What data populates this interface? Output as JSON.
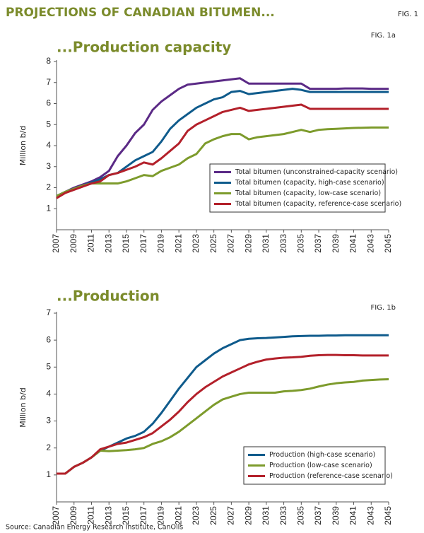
{
  "title": "PROJECTIONS OF CANADIAN BITUMEN...",
  "fig_label": "FIG. 1",
  "source": "Source: Canadian Energy Research Institute, CanOils",
  "chart_data": [
    {
      "type": "line",
      "title": "...Production capacity",
      "fig_label": "FIG. 1a",
      "ylabel": "Million b/d",
      "x": [
        2007,
        2008,
        2009,
        2010,
        2011,
        2012,
        2013,
        2014,
        2015,
        2016,
        2017,
        2018,
        2019,
        2020,
        2021,
        2022,
        2023,
        2024,
        2025,
        2026,
        2027,
        2028,
        2029,
        2030,
        2031,
        2032,
        2033,
        2034,
        2035,
        2036,
        2037,
        2038,
        2039,
        2040,
        2041,
        2042,
        2043,
        2044,
        2045
      ],
      "series": [
        {
          "name": "Total bitumen (unconstrained-capacity scenario)",
          "color": "#5b2a86",
          "values": [
            1.6,
            1.8,
            2.0,
            2.15,
            2.3,
            2.5,
            2.8,
            3.5,
            4.0,
            4.6,
            5.0,
            5.7,
            6.1,
            6.4,
            6.7,
            6.9,
            6.95,
            7.0,
            7.05,
            7.1,
            7.15,
            7.2,
            6.95,
            6.95,
            6.95,
            6.95,
            6.95,
            6.95,
            6.95,
            6.7,
            6.7,
            6.7,
            6.7,
            6.72,
            6.72,
            6.72,
            6.7,
            6.7,
            6.7
          ]
        },
        {
          "name": "Total bitumen (capacity, high-case scenario)",
          "color": "#0f5b8c",
          "values": [
            1.6,
            1.8,
            1.95,
            2.1,
            2.25,
            2.4,
            2.6,
            2.7,
            3.0,
            3.3,
            3.5,
            3.7,
            4.2,
            4.8,
            5.2,
            5.5,
            5.8,
            6.0,
            6.2,
            6.3,
            6.55,
            6.6,
            6.45,
            6.5,
            6.55,
            6.6,
            6.65,
            6.7,
            6.65,
            6.55,
            6.55,
            6.55,
            6.55,
            6.55,
            6.55,
            6.55,
            6.55,
            6.55,
            6.55
          ]
        },
        {
          "name": "Total bitumen (capacity, low-case scenario)",
          "color": "#7d9b2c",
          "values": [
            1.6,
            1.8,
            1.95,
            2.1,
            2.2,
            2.2,
            2.2,
            2.2,
            2.3,
            2.45,
            2.6,
            2.55,
            2.8,
            2.95,
            3.1,
            3.4,
            3.6,
            4.1,
            4.3,
            4.45,
            4.55,
            4.55,
            4.3,
            4.4,
            4.45,
            4.5,
            4.55,
            4.65,
            4.75,
            4.65,
            4.75,
            4.78,
            4.8,
            4.82,
            4.84,
            4.85,
            4.86,
            4.86,
            4.86
          ]
        },
        {
          "name": "Total bitumen (capacity, reference-case scenario)",
          "color": "#b3202a",
          "values": [
            1.5,
            1.75,
            1.9,
            2.05,
            2.2,
            2.3,
            2.6,
            2.7,
            2.85,
            3.0,
            3.2,
            3.1,
            3.4,
            3.75,
            4.1,
            4.7,
            5.0,
            5.2,
            5.4,
            5.6,
            5.7,
            5.8,
            5.65,
            5.7,
            5.75,
            5.8,
            5.85,
            5.9,
            5.95,
            5.75,
            5.75,
            5.75,
            5.75,
            5.75,
            5.75,
            5.75,
            5.75,
            5.75,
            5.75
          ]
        }
      ],
      "xlim": [
        2007,
        2045
      ],
      "xticks": [
        2007,
        2009,
        2011,
        2013,
        2015,
        2017,
        2019,
        2021,
        2023,
        2025,
        2027,
        2029,
        2031,
        2033,
        2035,
        2037,
        2039,
        2041,
        2043,
        2045
      ],
      "ylim": [
        0,
        8
      ],
      "yticks": [
        1,
        2,
        3,
        4,
        5,
        6,
        7,
        8
      ],
      "legend": "lower right"
    },
    {
      "type": "line",
      "title": "...Production",
      "fig_label": "FIG. 1b",
      "ylabel": "Million b/d",
      "x": [
        2007,
        2008,
        2009,
        2010,
        2011,
        2012,
        2013,
        2014,
        2015,
        2016,
        2017,
        2018,
        2019,
        2020,
        2021,
        2022,
        2023,
        2024,
        2025,
        2026,
        2027,
        2028,
        2029,
        2030,
        2031,
        2032,
        2033,
        2034,
        2035,
        2036,
        2037,
        2038,
        2039,
        2040,
        2041,
        2042,
        2043,
        2044,
        2045
      ],
      "series": [
        {
          "name": "Production (high-case scenario)",
          "color": "#0f5b8c",
          "values": [
            1.05,
            1.05,
            1.3,
            1.45,
            1.65,
            1.9,
            2.05,
            2.2,
            2.35,
            2.45,
            2.6,
            2.9,
            3.3,
            3.75,
            4.2,
            4.6,
            5.0,
            5.25,
            5.5,
            5.7,
            5.85,
            6.0,
            6.05,
            6.07,
            6.08,
            6.1,
            6.12,
            6.14,
            6.15,
            6.16,
            6.16,
            6.17,
            6.17,
            6.18,
            6.18,
            6.18,
            6.18,
            6.18,
            6.18
          ]
        },
        {
          "name": "Production (low-case scenario)",
          "color": "#7d9b2c",
          "values": [
            1.05,
            1.05,
            1.3,
            1.45,
            1.65,
            1.9,
            1.88,
            1.9,
            1.92,
            1.95,
            2.0,
            2.15,
            2.25,
            2.4,
            2.6,
            2.85,
            3.1,
            3.35,
            3.6,
            3.8,
            3.9,
            4.0,
            4.05,
            4.05,
            4.05,
            4.05,
            4.1,
            4.12,
            4.15,
            4.2,
            4.28,
            4.35,
            4.4,
            4.43,
            4.45,
            4.5,
            4.52,
            4.54,
            4.55
          ]
        },
        {
          "name": "Production (reference-case scenario)",
          "color": "#b3202a",
          "values": [
            1.05,
            1.05,
            1.3,
            1.45,
            1.65,
            1.95,
            2.05,
            2.15,
            2.2,
            2.3,
            2.4,
            2.55,
            2.8,
            3.05,
            3.35,
            3.7,
            4.0,
            4.25,
            4.45,
            4.65,
            4.8,
            4.95,
            5.1,
            5.2,
            5.28,
            5.32,
            5.35,
            5.36,
            5.38,
            5.42,
            5.44,
            5.45,
            5.45,
            5.44,
            5.44,
            5.43,
            5.43,
            5.43,
            5.43
          ]
        }
      ],
      "xlim": [
        2007,
        2045
      ],
      "xticks": [
        2007,
        2009,
        2011,
        2013,
        2015,
        2017,
        2019,
        2021,
        2023,
        2025,
        2027,
        2029,
        2031,
        2033,
        2035,
        2037,
        2039,
        2041,
        2043,
        2045
      ],
      "ylim": [
        0,
        7
      ],
      "yticks": [
        1,
        2,
        3,
        4,
        5,
        6,
        7
      ],
      "legend": "lower right"
    }
  ]
}
